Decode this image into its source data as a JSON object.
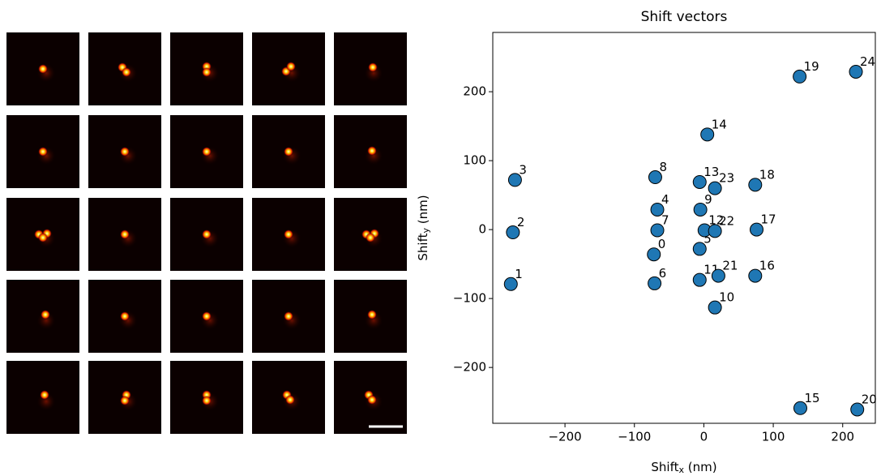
{
  "chart_data": {
    "type": "scatter",
    "title": "Shift vectors",
    "x_label": [
      "Shift",
      "x",
      " (nm)"
    ],
    "y_label": [
      "Shift",
      "y",
      " (nm)"
    ],
    "color": "#1f77b4",
    "edge_color": "#000000",
    "xlim": [
      -304,
      247
    ],
    "ylim": [
      -281,
      286
    ],
    "xticks": [
      {
        "value": -200,
        "label": "−200"
      },
      {
        "value": -100,
        "label": "−100"
      },
      0,
      100,
      200
    ],
    "yticks": [
      {
        "value": -200,
        "label": "−200"
      },
      {
        "value": -100,
        "label": "−100"
      },
      0,
      100,
      200
    ],
    "labels": [
      "0",
      "1",
      "2",
      "3",
      "4",
      "5",
      "6",
      "7",
      "8",
      "9",
      "10",
      "11",
      "12",
      "13",
      "14",
      "15",
      "16",
      "17",
      "18",
      "19",
      "20",
      "21",
      "22",
      "23",
      "24"
    ],
    "x": [
      -72,
      -278,
      -275,
      -272,
      -67,
      -6,
      -71,
      -67,
      -70,
      -5,
      16,
      -6,
      1,
      -6,
      5,
      139,
      74,
      76,
      74,
      138,
      221,
      21,
      16,
      16,
      219
    ],
    "y": [
      -36,
      -79,
      -4,
      72,
      29,
      -28,
      -78,
      -1,
      76,
      29,
      -113,
      -73,
      -1,
      69,
      138,
      -259,
      -67,
      0,
      65,
      222,
      -261,
      -67,
      -2,
      60,
      229
    ]
  }
}
